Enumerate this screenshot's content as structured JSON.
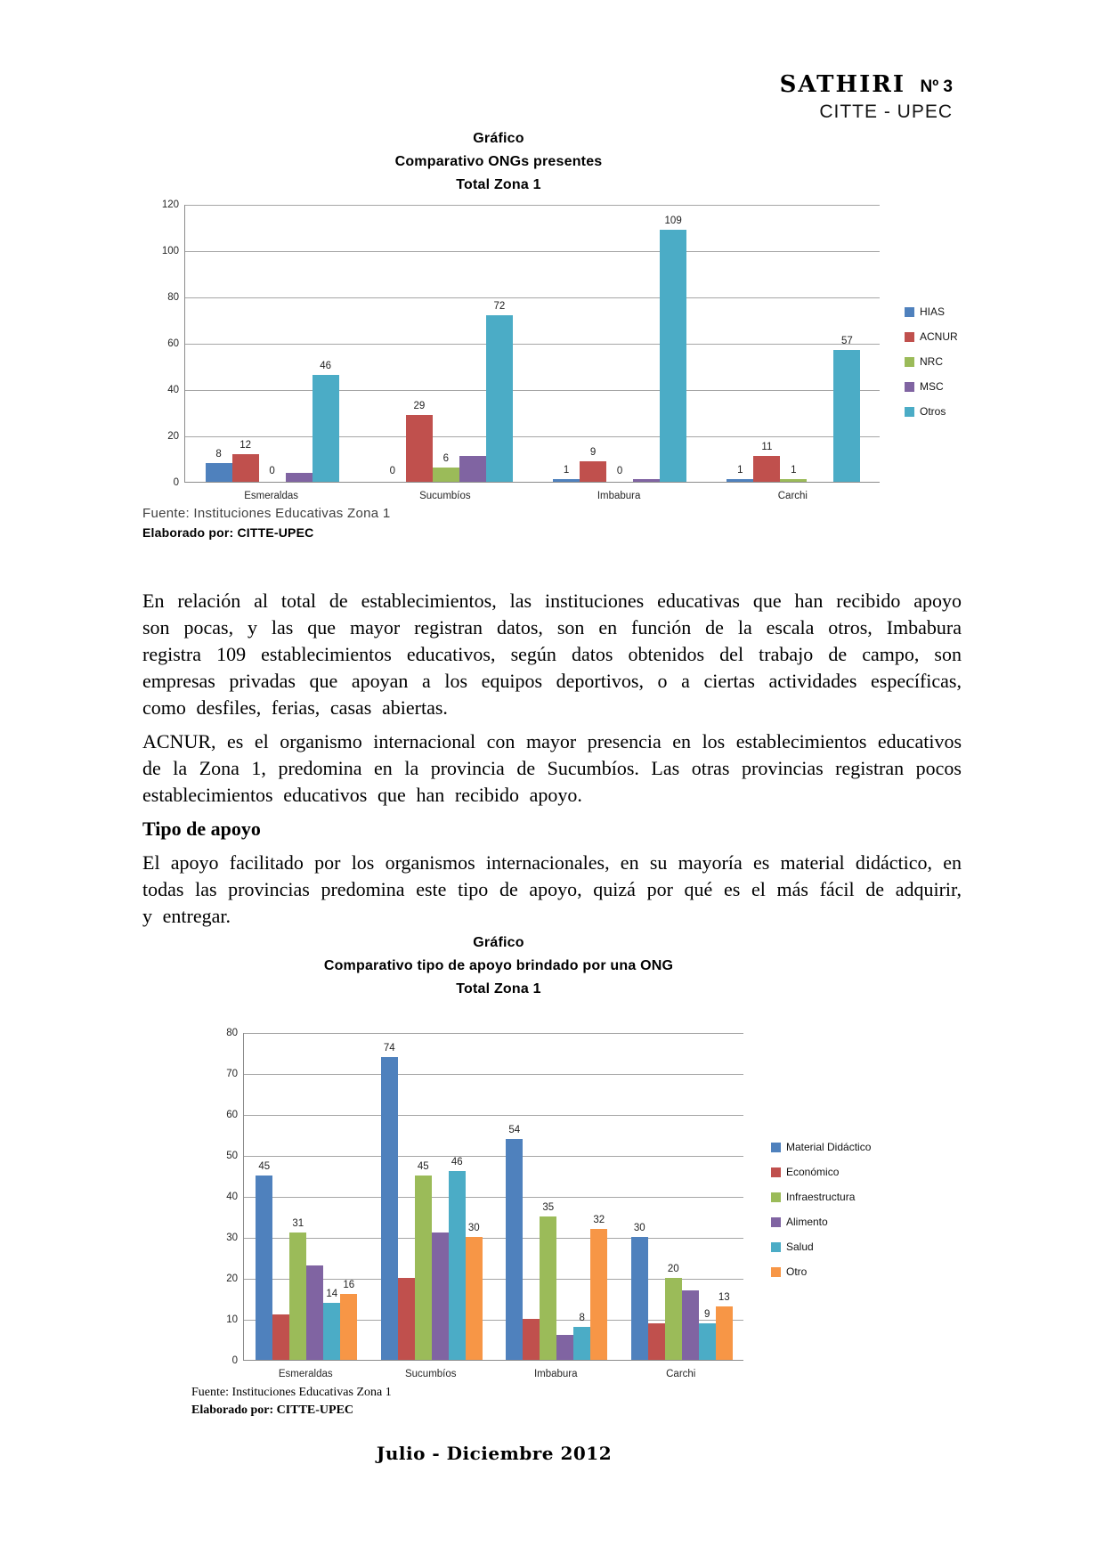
{
  "header": {
    "journal": "SATHIRI",
    "issue": "Nº 3",
    "subtitle": "CITTE - UPEC"
  },
  "paragraphs": {
    "p1": "En relación al total de establecimientos, las instituciones educativas  que han recibido apoyo son pocas, y las que mayor registran datos, son en función de la escala otros, Imbabura registra 109 establecimientos educativos, según datos obtenidos del trabajo de campo, son empresas privadas que apoyan a los equipos deportivos, o a ciertas actividades específicas, como desfiles, ferias, casas abiertas.",
    "p2": "ACNUR, es el organismo internacional con mayor presencia en los establecimientos educativos de la Zona 1, predomina en la provincia de Sucumbíos. Las otras provincias registran pocos establecimientos educativos que han recibido apoyo.",
    "heading": "Tipo de apoyo",
    "p3": "El apoyo facilitado por los organismos internacionales, en su mayoría es material didáctico, en todas las provincias predomina este tipo de apoyo, quizá por qué es el más fácil de adquirir, y entregar."
  },
  "footer": {
    "text": "Julio - Diciembre 2012"
  },
  "chart_data": [
    {
      "type": "bar",
      "title_lines": [
        "Gráfico",
        "Comparativo ONGs presentes",
        "Total Zona 1"
      ],
      "categories": [
        "Esmeraldas",
        "Sucumbíos",
        "Imbabura",
        "Carchi"
      ],
      "series": [
        {
          "name": "HIAS",
          "color": "#4F81BD",
          "values": [
            8,
            0,
            1,
            1
          ],
          "labels": [
            "8",
            "0",
            "1",
            "1"
          ]
        },
        {
          "name": "ACNUR",
          "color": "#C0504D",
          "values": [
            12,
            29,
            9,
            11
          ],
          "labels": [
            "12",
            "29",
            "9",
            "11"
          ]
        },
        {
          "name": "NRC",
          "color": "#9BBB59",
          "values": [
            0,
            6,
            0,
            1
          ],
          "labels": [
            "0",
            "6",
            "0",
            "1"
          ]
        },
        {
          "name": "MSC",
          "color": "#8064A2",
          "values": [
            4,
            11,
            1,
            0
          ],
          "labels": [
            "",
            "",
            "",
            ""
          ]
        },
        {
          "name": "Otros",
          "color": "#4BACC6",
          "values": [
            46,
            72,
            109,
            57
          ],
          "labels": [
            "46",
            "72",
            "109",
            "57"
          ]
        }
      ],
      "ylim": [
        0,
        120
      ],
      "ytick_step": 20,
      "grid": true,
      "legend_position": "right",
      "source": "Fuente: Instituciones Educativas Zona 1",
      "elaborated": "Elaborado por: CITTE-UPEC"
    },
    {
      "type": "bar",
      "title_lines": [
        "Gráfico",
        "Comparativo tipo de apoyo brindado por una ONG",
        "Total Zona 1"
      ],
      "categories": [
        "Esmeraldas",
        "Sucumbíos",
        "Imbabura",
        "Carchi"
      ],
      "series": [
        {
          "name": "Material Didáctico",
          "color": "#4F81BD",
          "values": [
            45,
            74,
            54,
            30
          ],
          "labels": [
            "45",
            "74",
            "54",
            "30"
          ]
        },
        {
          "name": "Económico",
          "color": "#C0504D",
          "values": [
            11,
            20,
            10,
            9
          ],
          "labels": [
            "",
            "",
            "",
            ""
          ]
        },
        {
          "name": "Infraestructura",
          "color": "#9BBB59",
          "values": [
            31,
            45,
            35,
            20
          ],
          "labels": [
            "31",
            "45",
            "35",
            "20"
          ]
        },
        {
          "name": "Alimento",
          "color": "#8064A2",
          "values": [
            23,
            31,
            6,
            17
          ],
          "labels": [
            "",
            "",
            "",
            ""
          ]
        },
        {
          "name": "Salud",
          "color": "#4BACC6",
          "values": [
            14,
            46,
            8,
            9
          ],
          "labels": [
            "14",
            "46",
            "8",
            "9"
          ]
        },
        {
          "name": "Otro",
          "color": "#F79646",
          "values": [
            16,
            30,
            32,
            13
          ],
          "labels": [
            "16",
            "30",
            "32",
            "13"
          ]
        }
      ],
      "ylim": [
        0,
        80
      ],
      "ytick_step": 10,
      "grid": true,
      "legend_position": "right",
      "source": "Fuente: Instituciones Educativas Zona 1",
      "elaborated": "Elaborado por: CITTE-UPEC"
    }
  ]
}
